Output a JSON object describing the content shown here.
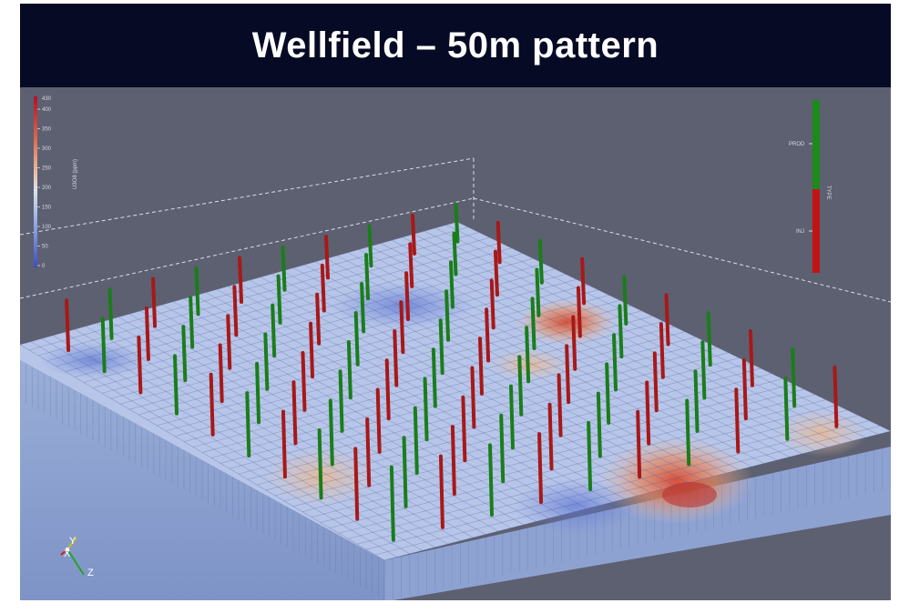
{
  "slide": {
    "title": "Wellfield – 50m pattern"
  },
  "viewport": {
    "background": "#5d6070",
    "scalar_bar": {
      "title": "U3O8 (ppm)",
      "ticks": [
        "400",
        "350",
        "300",
        "250",
        "200",
        "150",
        "100",
        "50",
        "0"
      ],
      "top_value": "430",
      "range": [
        0,
        430
      ]
    },
    "type_legend": {
      "title": "TYPE",
      "entries": [
        {
          "label": "PROD",
          "color": "#1c8a1c"
        },
        {
          "label": "INJ",
          "color": "#c21414"
        }
      ]
    },
    "orientation_axes": {
      "labels": [
        "Y",
        "X",
        "Z"
      ],
      "colors": [
        "#c9c21e",
        "#d12020",
        "#1fa51f"
      ]
    },
    "well_colors": {
      "injection": "#a81818",
      "production": "#1a7d1a"
    }
  }
}
